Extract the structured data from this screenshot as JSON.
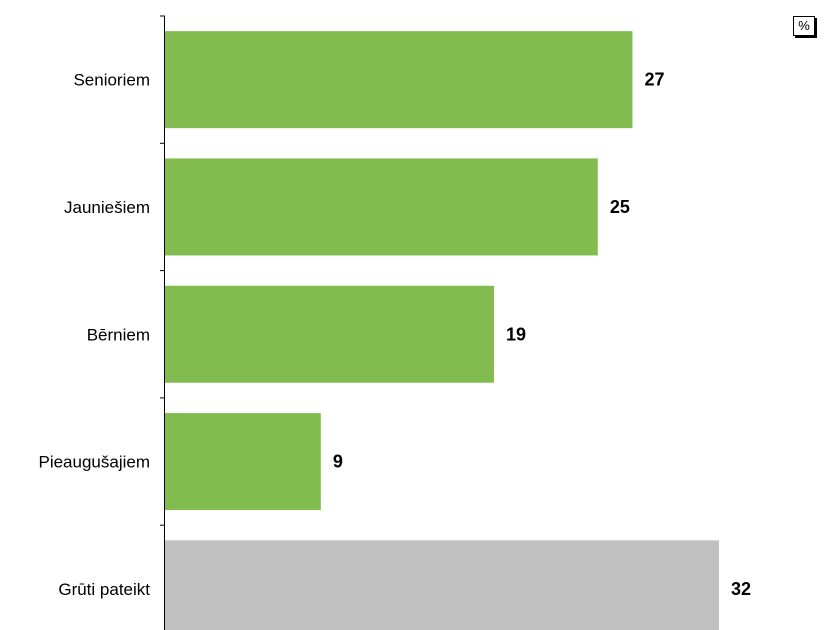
{
  "chart_data": {
    "type": "bar",
    "orientation": "horizontal",
    "unit": "%",
    "categories": [
      "Senioriem",
      "Jauniešiem",
      "Bērniem",
      "Pieaugušajiem",
      "Grūti pateikt"
    ],
    "values": [
      27,
      25,
      19,
      9,
      32
    ],
    "bar_colors": [
      "#82bc4f",
      "#82bc4f",
      "#82bc4f",
      "#82bc4f",
      "#c0c0c0"
    ],
    "xlim": [
      0,
      32
    ],
    "grid": false,
    "data_labels": true
  }
}
